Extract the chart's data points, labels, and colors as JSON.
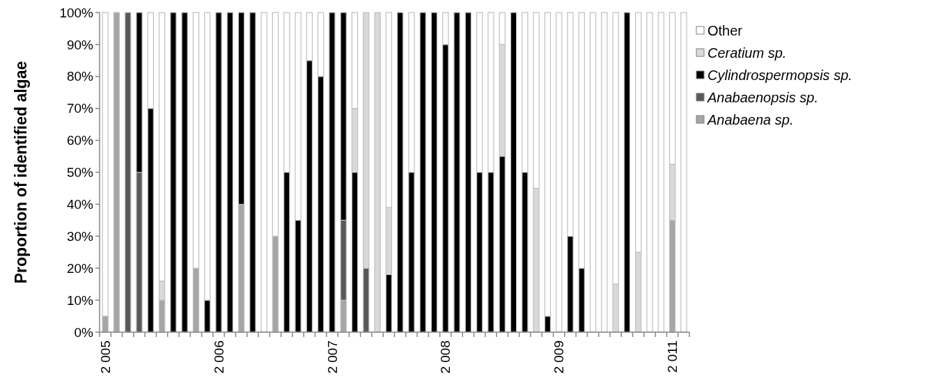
{
  "chart_data": {
    "type": "bar",
    "stacked": true,
    "ylabel": "Proportion of identified algae",
    "categories": [
      "2 005",
      null,
      null,
      null,
      null,
      null,
      null,
      null,
      null,
      null,
      "2 006",
      null,
      null,
      null,
      null,
      null,
      null,
      null,
      null,
      null,
      "2 007",
      null,
      null,
      null,
      null,
      null,
      null,
      null,
      null,
      null,
      "2 008",
      null,
      null,
      null,
      null,
      null,
      null,
      null,
      null,
      null,
      "2 009",
      null,
      null,
      null,
      null,
      null,
      null,
      null,
      null,
      null,
      "2 011",
      null
    ],
    "series": [
      {
        "name": "Anabaena sp.",
        "color": "#a6a6a6",
        "values": [
          5,
          100,
          0,
          0,
          0,
          10,
          0,
          0,
          20,
          0,
          0,
          0,
          40,
          0,
          0,
          30,
          0,
          0,
          0,
          0,
          0,
          10,
          0,
          0,
          0,
          0,
          0,
          0,
          0,
          0,
          0,
          0,
          0,
          0,
          0,
          0,
          0,
          0,
          0,
          0,
          0,
          0,
          0,
          0,
          0,
          0,
          0,
          0,
          0,
          0,
          35,
          0
        ]
      },
      {
        "name": "Anabaenopsis sp.",
        "color": "#595959",
        "values": [
          0,
          0,
          100,
          50,
          0,
          0,
          0,
          0,
          0,
          0,
          0,
          0,
          0,
          0,
          0,
          0,
          0,
          0,
          0,
          0,
          0,
          25,
          0,
          20,
          0,
          0,
          0,
          0,
          0,
          0,
          0,
          0,
          0,
          0,
          0,
          0,
          0,
          0,
          0,
          0,
          0,
          0,
          0,
          0,
          0,
          0,
          0,
          0,
          0,
          0,
          0,
          0
        ]
      },
      {
        "name": "Cylindrospermopsis sp.",
        "color": "#000000",
        "values": [
          0,
          0,
          0,
          50,
          70,
          0,
          100,
          100,
          0,
          10,
          100,
          100,
          60,
          100,
          0,
          0,
          50,
          35,
          85,
          80,
          100,
          65,
          50,
          0,
          0,
          18,
          100,
          50,
          100,
          100,
          90,
          100,
          100,
          50,
          50,
          55,
          100,
          50,
          0,
          5,
          0,
          30,
          20,
          0,
          0,
          0,
          100,
          0,
          0,
          0,
          0,
          0
        ]
      },
      {
        "name": "Ceratium sp.",
        "color": "#d9d9d9",
        "values": [
          0,
          0,
          0,
          0,
          0,
          6,
          0,
          0,
          0,
          0,
          0,
          0,
          0,
          0,
          0,
          0,
          0,
          0,
          0,
          0,
          0,
          0,
          20,
          80,
          100,
          21,
          0,
          0,
          0,
          0,
          0,
          0,
          0,
          0,
          0,
          35,
          0,
          0,
          45,
          0,
          0,
          0,
          0,
          0,
          0,
          15,
          0,
          25,
          0,
          0,
          17.5,
          0
        ]
      },
      {
        "name": "Other",
        "color": "#ffffff",
        "values": [
          95,
          0,
          0,
          0,
          30,
          84,
          0,
          0,
          80,
          90,
          0,
          0,
          0,
          0,
          100,
          70,
          50,
          65,
          15,
          20,
          0,
          0,
          30,
          0,
          0,
          61,
          0,
          50,
          0,
          0,
          10,
          0,
          0,
          50,
          50,
          10,
          0,
          50,
          55,
          95,
          100,
          70,
          80,
          100,
          100,
          85,
          0,
          75,
          100,
          100,
          47.5,
          100
        ]
      }
    ],
    "ylim": [
      0,
      100
    ],
    "yticks": [
      {
        "value": 0,
        "label": "0%"
      },
      {
        "value": 10,
        "label": "10%"
      },
      {
        "value": 20,
        "label": "20%"
      },
      {
        "value": 30,
        "label": "30%"
      },
      {
        "value": 40,
        "label": "40%"
      },
      {
        "value": 50,
        "label": "50%"
      },
      {
        "value": 60,
        "label": "60%"
      },
      {
        "value": 70,
        "label": "70%"
      },
      {
        "value": 80,
        "label": "80%"
      },
      {
        "value": 90,
        "label": "90%"
      },
      {
        "value": 100,
        "label": "100%"
      }
    ],
    "legend": "right"
  }
}
